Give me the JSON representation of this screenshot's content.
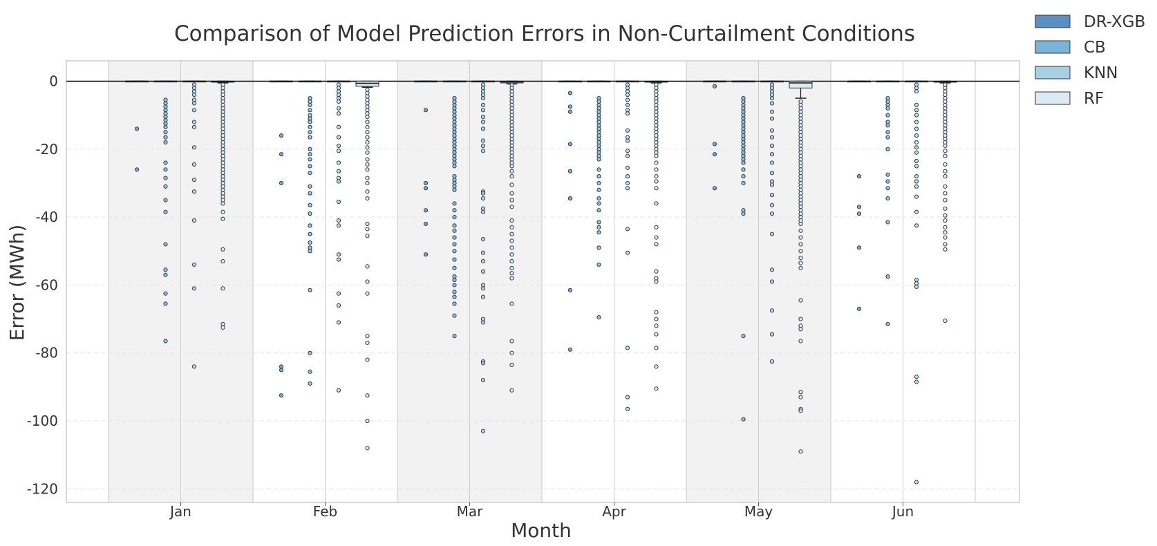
{
  "chart_data": {
    "type": "box",
    "title": "Comparison of Model Prediction Errors in Non-Curtailment Conditions",
    "xlabel": "Month",
    "ylabel": "Error (MWh)",
    "ylim": [
      -124,
      6
    ],
    "yticks": [
      0,
      -20,
      -40,
      -60,
      -80,
      -100,
      -120
    ],
    "categories": [
      "Jan",
      "Feb",
      "Mar",
      "Apr",
      "May",
      "Jun"
    ],
    "grid": true,
    "legend_position": "outside-top-right",
    "series": [
      {
        "name": "DR-XGB",
        "color": "#5b8fc4",
        "boxes": [
          {
            "q1": 0,
            "median": 0,
            "q3": 0,
            "whisker_low": 0,
            "whisker_high": 0,
            "outliers": [
              -14,
              -26
            ]
          },
          {
            "q1": 0,
            "median": 0,
            "q3": 0,
            "whisker_low": 0,
            "whisker_high": 0,
            "outliers": [
              -16,
              -21.5,
              -30,
              -84,
              -85,
              -92.5
            ]
          },
          {
            "q1": 0,
            "median": 0,
            "q3": 0,
            "whisker_low": 0,
            "whisker_high": 0,
            "outliers": [
              -8.5,
              -30,
              -31.5,
              -38,
              -42,
              -51
            ]
          },
          {
            "q1": 0,
            "median": 0,
            "q3": 0,
            "whisker_low": 0,
            "whisker_high": 0,
            "outliers": [
              -3.5,
              -7.5,
              -9,
              -18.5,
              -26.5,
              -34.5,
              -61.5,
              -79
            ]
          },
          {
            "q1": 0,
            "median": 0,
            "q3": 0,
            "whisker_low": 0,
            "whisker_high": 0,
            "outliers": [
              -1.5,
              -18.5,
              -21.5,
              -31.5
            ]
          },
          {
            "q1": 0,
            "median": 0,
            "q3": 0,
            "whisker_low": 0,
            "whisker_high": 0,
            "outliers": [
              -28,
              -37,
              -39,
              -49,
              -67
            ]
          }
        ]
      },
      {
        "name": "CB",
        "color": "#7ab3d6",
        "boxes": [
          {
            "q1": 0,
            "median": 0,
            "q3": 0,
            "whisker_low": 0,
            "whisker_high": 0,
            "outliers": [
              -5.5,
              -6.5,
              -7.5,
              -8.5,
              -9.5,
              -10.5,
              -11.5,
              -12.5,
              -13.5,
              -15,
              -16.5,
              -18,
              -24,
              -26,
              -28.5,
              -31,
              -35,
              -38.5,
              -48,
              -55.5,
              -57,
              -62.5,
              -65.5,
              -76.5
            ]
          },
          {
            "q1": 0,
            "median": 0,
            "q3": 0,
            "whisker_low": 0,
            "whisker_high": 0,
            "outliers": [
              -5,
              -6,
              -7,
              -8.5,
              -10,
              -11,
              -12,
              -13.5,
              -15,
              -16.5,
              -20,
              -21.5,
              -23,
              -25,
              -27,
              -31,
              -33,
              -36.5,
              -39,
              -42.5,
              -45,
              -47.5,
              -49,
              -50,
              -61.5,
              -80,
              -85.5,
              -89
            ]
          },
          {
            "q1": 0,
            "median": 0,
            "q3": 0,
            "whisker_low": 0,
            "whisker_high": 0,
            "outliers": [
              -5,
              -6,
              -7,
              -8,
              -9,
              -10,
              -11,
              -12,
              -13,
              -14,
              -15,
              -16,
              -17,
              -18,
              -19,
              -20,
              -21,
              -22,
              -23,
              -24,
              -25,
              -28,
              -29,
              -30,
              -31,
              -32,
              -36,
              -38,
              -40,
              -42.5,
              -44,
              -46,
              -48,
              -50,
              -52.5,
              -55,
              -57.5,
              -58.5,
              -60,
              -62,
              -63.5,
              -65.5,
              -69,
              -75
            ]
          },
          {
            "q1": 0,
            "median": 0,
            "q3": 0,
            "whisker_low": 0,
            "whisker_high": 0,
            "outliers": [
              -5,
              -6,
              -7,
              -8,
              -9,
              -10,
              -11,
              -12,
              -13,
              -14,
              -15,
              -16,
              -17,
              -18,
              -19,
              -20,
              -21,
              -22,
              -23,
              -26,
              -28,
              -30,
              -32,
              -34.5,
              -36,
              -38,
              -41.5,
              -43,
              -44.5,
              -49,
              -54,
              -69.5
            ]
          },
          {
            "q1": 0,
            "median": 0,
            "q3": 0,
            "whisker_low": 0,
            "whisker_high": 0,
            "outliers": [
              -5,
              -6,
              -7,
              -8,
              -9,
              -10,
              -11,
              -12,
              -13,
              -14,
              -15,
              -16,
              -17,
              -18,
              -19,
              -20,
              -21,
              -22,
              -23,
              -24,
              -26,
              -28,
              -30,
              -38,
              -39,
              -75,
              -99.5
            ]
          },
          {
            "q1": 0,
            "median": 0,
            "q3": 0,
            "whisker_low": 0,
            "whisker_high": 0,
            "outliers": [
              -5,
              -6,
              -7,
              -8,
              -10,
              -12,
              -13,
              -15,
              -16.5,
              -20,
              -27.5,
              -29.5,
              -31.5,
              -34.5,
              -41.5,
              -57.5,
              -71.5
            ]
          }
        ]
      },
      {
        "name": "KNN",
        "color": "#a8d0e4",
        "boxes": [
          {
            "q1": 0,
            "median": 0,
            "q3": 0,
            "whisker_low": 0,
            "whisker_high": 0,
            "outliers": [
              -1,
              -2,
              -3,
              -4,
              -5.5,
              -6.5,
              -8.5,
              -12,
              -13.5,
              -19.5,
              -24.5,
              -29,
              -32.5,
              -41,
              -54,
              -61,
              -84
            ]
          },
          {
            "q1": 0,
            "median": 0,
            "q3": 0,
            "whisker_low": 0,
            "whisker_high": 0,
            "outliers": [
              -1,
              -2,
              -3,
              -4,
              -5,
              -6,
              -8,
              -9.5,
              -13.5,
              -16.5,
              -19,
              -20.5,
              -24,
              -26.5,
              -28.5,
              -29.5,
              -35.5,
              -41,
              -42.5,
              -51,
              -52.5,
              -62.5,
              -66,
              -71,
              -91
            ]
          },
          {
            "q1": 0,
            "median": 0,
            "q3": 0,
            "whisker_low": 0,
            "whisker_high": 0,
            "outliers": [
              -1,
              -2,
              -3,
              -4,
              -5,
              -7,
              -8.5,
              -10.5,
              -12,
              -14,
              -17.5,
              -19,
              -20.5,
              -32.5,
              -33,
              -34.5,
              -37.5,
              -38.5,
              -46.5,
              -50.5,
              -53,
              -56,
              -60,
              -61,
              -63.5,
              -70,
              -71,
              -82.5,
              -83,
              -88,
              -103
            ]
          },
          {
            "q1": 0,
            "median": 0,
            "q3": 0,
            "whisker_low": 0,
            "whisker_high": 0,
            "outliers": [
              -1,
              -2,
              -3,
              -4,
              -5.5,
              -7,
              -8.5,
              -9.5,
              -14.5,
              -16.5,
              -17.5,
              -20.5,
              -22,
              -25.5,
              -28,
              -30,
              -31.5,
              -43.5,
              -50.5,
              -78.5,
              -93,
              -96.5
            ]
          },
          {
            "q1": 0,
            "median": 0,
            "q3": 0,
            "whisker_low": 0,
            "whisker_high": 0,
            "outliers": [
              -1,
              -2,
              -3,
              -4,
              -5,
              -6.5,
              -9,
              -11,
              -14.5,
              -16.5,
              -19,
              -21.5,
              -24,
              -27,
              -29.5,
              -30.5,
              -33.5,
              -36.5,
              -39,
              -45,
              -55.5,
              -59,
              -67.5,
              -74.5,
              -82.5
            ]
          },
          {
            "q1": 0,
            "median": 0,
            "q3": 0,
            "whisker_low": 0,
            "whisker_high": 0,
            "outliers": [
              -1,
              -2,
              -3,
              -7,
              -8.5,
              -10,
              -12,
              -14,
              -16,
              -18,
              -19.5,
              -21,
              -23.5,
              -25,
              -28,
              -29.5,
              -31,
              -34,
              -38.5,
              -42.5,
              -58.5,
              -59.5,
              -60.5,
              -87,
              -88.5,
              -118
            ]
          }
        ]
      },
      {
        "name": "RF",
        "color": "#dbeaf3",
        "boxes": [
          {
            "q1": -0.3,
            "median": -0.1,
            "q3": 0,
            "whisker_low": -0.5,
            "whisker_high": 0,
            "outliers": [
              -1,
              -2,
              -3,
              -4,
              -5,
              -6,
              -7,
              -8,
              -9,
              -10,
              -11,
              -12,
              -13,
              -14,
              -15,
              -16,
              -17,
              -18,
              -19,
              -20,
              -21,
              -22,
              -23,
              -24,
              -25,
              -26,
              -27,
              -28,
              -29,
              -30,
              -31,
              -32,
              -33,
              -34,
              -35,
              -36,
              -38.5,
              -40.5,
              -49.5,
              -53,
              -61,
              -71.5,
              -72.5
            ]
          },
          {
            "q1": -1.5,
            "median": -0.6,
            "q3": 0,
            "whisker_low": -1.8,
            "whisker_high": 0,
            "outliers": [
              -2.5,
              -3.5,
              -4.5,
              -5.5,
              -6.5,
              -7.5,
              -8.5,
              -9.5,
              -10.5,
              -12,
              -13.5,
              -15,
              -16.5,
              -18,
              -19.5,
              -21,
              -23,
              -24.5,
              -26,
              -28.5,
              -30,
              -32.5,
              -34.5,
              -42,
              -43.5,
              -45.5,
              -54.5,
              -59,
              -62.5,
              -75,
              -77,
              -82,
              -92.5,
              -100,
              -108
            ]
          },
          {
            "q1": -0.5,
            "median": -0.2,
            "q3": 0,
            "whisker_low": -0.8,
            "whisker_high": 0,
            "outliers": [
              -1,
              -2,
              -3,
              -4,
              -5,
              -6,
              -7,
              -8,
              -9,
              -10,
              -11,
              -12,
              -13,
              -14,
              -15,
              -16,
              -17,
              -18,
              -19,
              -20,
              -21,
              -22,
              -23,
              -24,
              -25,
              -26.5,
              -28,
              -30.5,
              -33,
              -35,
              -37,
              -41,
              -43,
              -45,
              -47,
              -49,
              -51,
              -53,
              -55,
              -56.5,
              -58,
              -65.5,
              -76.5,
              -80,
              -83.5,
              -91
            ]
          },
          {
            "q1": -0.3,
            "median": -0.1,
            "q3": 0,
            "whisker_low": -0.5,
            "whisker_high": 0,
            "outliers": [
              -1,
              -2,
              -3,
              -4,
              -5,
              -6,
              -7,
              -8,
              -9,
              -10,
              -11,
              -12,
              -13,
              -14,
              -15,
              -16,
              -17,
              -18,
              -19,
              -20,
              -21,
              -22,
              -24,
              -26,
              -28,
              -29.5,
              -31.5,
              -36,
              -43,
              -46,
              -48,
              -56,
              -58,
              -59,
              -68,
              -70,
              -72,
              -74.5,
              -78.5,
              -84,
              -90.5
            ]
          },
          {
            "q1": -2,
            "median": -0.5,
            "q3": 0,
            "whisker_low": -5,
            "whisker_high": 0,
            "outliers": [
              -6,
              -7,
              -8,
              -9,
              -10,
              -11,
              -12,
              -13,
              -14,
              -15,
              -16,
              -17,
              -18,
              -19,
              -20,
              -21,
              -22,
              -23,
              -24,
              -25,
              -26,
              -27,
              -28,
              -29,
              -30,
              -31,
              -32,
              -33,
              -34,
              -35,
              -36,
              -37,
              -38,
              -39,
              -40,
              -41,
              -42,
              -44,
              -46,
              -48,
              -50,
              -52,
              -53.5,
              -55,
              -64.5,
              -70,
              -72,
              -73,
              -76.5,
              -91.5,
              -93,
              -96.5,
              -97,
              -109
            ]
          },
          {
            "q1": -0.3,
            "median": -0.1,
            "q3": 0,
            "whisker_low": -0.5,
            "whisker_high": 0,
            "outliers": [
              -1,
              -2,
              -3,
              -4,
              -5,
              -6,
              -7,
              -8,
              -9,
              -10,
              -11,
              -12,
              -13,
              -14,
              -15,
              -16,
              -17,
              -18,
              -19,
              -20.5,
              -22,
              -24.5,
              -26.5,
              -28,
              -31,
              -33,
              -35,
              -37.5,
              -39.5,
              -41,
              -43,
              -44.5,
              -46,
              -48,
              -49.5,
              -70.5
            ]
          }
        ]
      }
    ]
  }
}
